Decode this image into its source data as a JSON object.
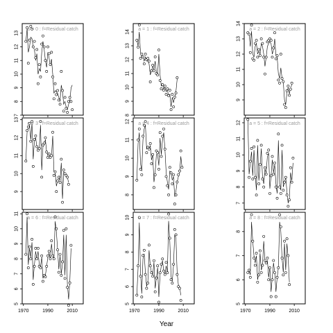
{
  "chart_data": {
    "type": "scatter",
    "xlabel": "Year",
    "x_ticks": [
      1970,
      1990,
      2010
    ],
    "years": [
      1972,
      1973,
      1974,
      1975,
      1976,
      1977,
      1978,
      1979,
      1980,
      1981,
      1982,
      1983,
      1984,
      1985,
      1986,
      1987,
      1988,
      1989,
      1990,
      1991,
      1992,
      1993,
      1994,
      1995,
      1996,
      1997,
      1998,
      1999,
      2000,
      2001,
      2002,
      2003,
      2004,
      2005,
      2006,
      2007,
      2008,
      2009,
      2010,
      2011,
      2012,
      2013,
      2014,
      2015,
      2016
    ],
    "panels": [
      {
        "title": "a = 0  :  f=Residual catch",
        "ylim": [
          7,
          13.7
        ],
        "yticks": [
          7,
          8,
          9,
          10,
          11,
          12,
          13
        ],
        "points": [
          12.4,
          13.4,
          10.8,
          12.5,
          13.5,
          13.3,
          12.0,
          12.4,
          11.2,
          11.8,
          9.3,
          10.7,
          9.8,
          12.2,
          12.8,
          12.0,
          11.0,
          10.2,
          12.0,
          11.5,
          10.7,
          11.6,
          9.8,
          8.2,
          9.3,
          8.5,
          8.8,
          8.1,
          7.8,
          10.2,
          8.8,
          7.3,
          8.3,
          7.5,
          7.2,
          8.0,
          8.3,
          8.0,
          7.4
        ],
        "line": [
          12.4,
          13.3,
          11.6,
          12.0,
          12.7,
          12.6,
          12.0,
          11.8,
          11.0,
          11.5,
          10.0,
          10.4,
          10.2,
          11.6,
          12.4,
          11.8,
          11.0,
          10.5,
          11.6,
          11.2,
          10.6,
          11.1,
          10.0,
          8.6,
          8.8,
          8.7,
          8.6,
          8.3,
          8.0,
          9.2,
          8.7,
          7.8,
          8.0,
          7.6,
          7.4,
          7.8,
          8.0,
          9.0,
          9.2
        ]
      },
      {
        "title": "a = 1  :  f=Residual catch",
        "ylim": [
          8,
          14.6
        ],
        "yticks": [
          8,
          9,
          10,
          11,
          12,
          13,
          14
        ],
        "points": [
          13.4,
          12.9,
          14.5,
          12.1,
          12.4,
          12.2,
          11.7,
          12.4,
          12.0,
          12.1,
          11.9,
          10.4,
          11.2,
          11.6,
          11.2,
          12.2,
          11.0,
          10.9,
          12.7,
          10.5,
          9.9,
          10.2,
          9.8,
          10.1,
          9.5,
          9.9,
          9.4,
          9.8,
          8.4,
          9.5,
          8.6,
          9.3,
          9.6,
          10.7
        ],
        "line": [
          13.4,
          13.0,
          14.0,
          12.5,
          12.2,
          12.2,
          11.9,
          12.2,
          11.9,
          11.9,
          11.7,
          10.9,
          11.2,
          11.5,
          11.3,
          11.9,
          11.1,
          11.0,
          12.4,
          10.9,
          10.1,
          10.2,
          9.9,
          10.0,
          9.7,
          9.8,
          9.4,
          9.5,
          8.6,
          9.3,
          8.9,
          9.3,
          9.7,
          10.6
        ]
      },
      {
        "title": "a = 2  :  f=Residual catch",
        "ylim": [
          8,
          14
        ],
        "yticks": [
          9,
          10,
          11,
          12,
          13,
          14
        ],
        "points": [
          13.4,
          13.3,
          12.1,
          13.9,
          11.7,
          11.6,
          12.7,
          12.9,
          11.8,
          12.3,
          11.9,
          13.0,
          12.7,
          11.8,
          10.7,
          11.8,
          12.8,
          12.9,
          13.0,
          12.9,
          11.8,
          12.4,
          13.4,
          11.7,
          11.9,
          10.3,
          10.1,
          12.0,
          10.4,
          10.2,
          8.7,
          8.5,
          9.6,
          9.9,
          9.3,
          9.7,
          10.1
        ],
        "line": [
          13.4,
          13.3,
          12.5,
          13.5,
          12.0,
          11.8,
          12.5,
          12.7,
          12.0,
          12.2,
          12.0,
          12.7,
          12.5,
          12.0,
          11.2,
          11.8,
          12.5,
          12.7,
          12.8,
          12.7,
          12.0,
          12.3,
          13.0,
          11.9,
          11.8,
          10.7,
          10.4,
          11.1,
          10.4,
          10.2,
          9.0,
          8.7,
          9.5,
          9.8,
          9.4,
          9.8,
          10.0
        ]
      },
      {
        "title": "a = 3  :  f=Residual catch",
        "ylim": [
          8,
          13.1
        ],
        "yticks": [
          9,
          10,
          11,
          12,
          13
        ],
        "points": [
          10.7,
          12.4,
          12.6,
          12.8,
          11.8,
          12.9,
          10.4,
          11.9,
          12.1,
          11.5,
          11.3,
          11.4,
          12.9,
          9.8,
          11.6,
          11.7,
          12.0,
          11.2,
          10.9,
          11.1,
          10.9,
          11.0,
          12.3,
          9.9,
          10.1,
          9.0,
          9.6,
          9.8,
          9.5,
          10.8,
          8.4,
          10.2,
          10.0,
          9.9,
          9.8,
          9.4
        ],
        "line": [
          10.7,
          12.3,
          12.5,
          12.7,
          11.9,
          12.8,
          10.8,
          11.8,
          12.0,
          11.5,
          11.3,
          11.4,
          12.7,
          10.2,
          11.5,
          11.6,
          11.9,
          11.2,
          11.0,
          11.1,
          10.9,
          11.0,
          12.1,
          10.1,
          10.1,
          9.3,
          9.6,
          9.8,
          9.6,
          10.6,
          8.6,
          10.1,
          10.0,
          9.9,
          9.8,
          9.5
        ]
      },
      {
        "title": "a = 4  :  f=Residual catch",
        "ylim": [
          7.2,
          12.2
        ],
        "yticks": [
          8,
          9,
          10,
          11,
          12
        ],
        "points": [
          8.8,
          11.0,
          11.6,
          9.4,
          9.1,
          11.2,
          11.8,
          12.0,
          10.3,
          10.6,
          10.5,
          10.8,
          9.7,
          10.2,
          8.4,
          9.1,
          10.4,
          10.3,
          9.4,
          11.4,
          10.1,
          11.2,
          11.6,
          10.5,
          9.0,
          8.5,
          8.0,
          9.5,
          9.2,
          8.6,
          9.1,
          7.5,
          8.0,
          8.7,
          9.1,
          9.3,
          10.4,
          9.5
        ],
        "line": [
          8.8,
          10.8,
          11.4,
          9.7,
          9.3,
          11.0,
          11.6,
          11.8,
          10.5,
          10.6,
          10.5,
          10.7,
          9.9,
          10.2,
          8.7,
          9.2,
          10.2,
          10.2,
          9.6,
          11.1,
          10.2,
          11.0,
          11.4,
          10.5,
          9.2,
          8.7,
          8.3,
          9.3,
          9.2,
          8.8,
          9.0,
          7.9,
          8.2,
          8.7,
          9.0,
          9.2,
          10.1,
          9.5
        ]
      },
      {
        "title": "a = 5  :  f=Residual catch",
        "ylim": [
          6.6,
          12.3
        ],
        "yticks": [
          7,
          8,
          9,
          10,
          11,
          12
        ],
        "points": [
          12.2,
          8.6,
          9.6,
          10.4,
          8.5,
          10.5,
          8.6,
          7.5,
          10.9,
          8.2,
          9.4,
          10.6,
          8.5,
          8.0,
          9.2,
          8.8,
          10.1,
          10.3,
          7.6,
          8.7,
          9.9,
          8.8,
          9.5,
          8.0,
          7.3,
          11.3,
          8.0,
          7.6,
          10.6,
          7.8,
          8.3,
          8.6,
          7.5,
          6.8,
          7.2,
          9.2,
          8.3,
          9.8
        ],
        "line": [
          12.2,
          8.8,
          9.5,
          10.2,
          8.7,
          10.3,
          8.8,
          7.8,
          10.6,
          8.4,
          9.3,
          10.4,
          8.6,
          8.2,
          9.1,
          8.9,
          9.9,
          10.1,
          7.9,
          8.7,
          9.7,
          8.9,
          9.4,
          8.2,
          7.6,
          10.9,
          8.2,
          7.8,
          10.3,
          8.0,
          8.3,
          8.6,
          7.7,
          7.0,
          7.3,
          8.9,
          8.4,
          9.5
        ]
      },
      {
        "title": "a = 6  :  f=Residual catch",
        "ylim": [
          5,
          11.1
        ],
        "yticks": [
          5,
          6,
          7,
          8,
          9,
          10,
          11
        ],
        "points": [
          8.3,
          11.0,
          7.4,
          8.8,
          8.0,
          9.3,
          6.3,
          7.5,
          8.7,
          8.0,
          8.7,
          7.5,
          7.4,
          8.2,
          6.5,
          6.9,
          6.8,
          7.5,
          8.2,
          8.5,
          8.0,
          9.2,
          8.2,
          8.0,
          10.8,
          10.0,
          8.6,
          7.1,
          8.3,
          6.9,
          7.8,
          9.9,
          6.7,
          10.0,
          6.1,
          4.9,
          6.4,
          8.9
        ],
        "line": [
          8.3,
          10.8,
          7.6,
          8.7,
          8.1,
          9.1,
          6.6,
          7.6,
          8.5,
          8.0,
          8.5,
          7.6,
          7.5,
          8.1,
          6.7,
          6.9,
          6.9,
          7.5,
          8.1,
          8.4,
          8.0,
          9.0,
          8.2,
          8.0,
          10.5,
          9.8,
          8.6,
          7.3,
          8.2,
          7.0,
          7.7,
          9.6,
          6.9,
          9.6,
          6.3,
          5.3,
          6.5,
          8.7
        ]
      },
      {
        "title": "a = 7  :  f=Residual catch",
        "ylim": [
          5,
          10.3
        ],
        "yticks": [
          5,
          6,
          7,
          8,
          9,
          10
        ],
        "points": [
          5.5,
          7.2,
          10.0,
          6.6,
          5.4,
          7.8,
          8.1,
          6.7,
          5.9,
          6.2,
          8.4,
          7.2,
          6.8,
          6.6,
          7.5,
          5.7,
          6.5,
          7.2,
          5.1,
          6.8,
          7.3,
          7.6,
          6.9,
          6.7,
          7.4,
          6.8,
          10.2,
          8.8,
          6.4,
          6.2,
          7.3,
          9.3,
          9.0,
          6.7,
          6.0,
          5.9,
          5.2
        ],
        "line": [
          5.5,
          7.1,
          9.7,
          6.8,
          5.6,
          7.6,
          7.9,
          6.8,
          6.0,
          6.3,
          8.1,
          7.2,
          6.8,
          6.7,
          7.4,
          5.9,
          6.5,
          7.1,
          5.4,
          6.7,
          7.2,
          7.5,
          6.9,
          6.7,
          7.2,
          6.8,
          9.8,
          8.6,
          6.6,
          6.3,
          7.2,
          9.0,
          8.8,
          6.8,
          6.1,
          6.0,
          5.5
        ]
      },
      {
        "title": "a = 8  :  f=Residual catch",
        "ylim": [
          5,
          8.8
        ],
        "yticks": [
          5,
          6,
          7,
          8
        ],
        "points": [
          6.3,
          6.4,
          6.1,
          8.7,
          7.6,
          6.9,
          6.6,
          7.1,
          5.9,
          6.2,
          7.2,
          6.3,
          6.6,
          7.8,
          6.8,
          6.7,
          6.9,
          6.0,
          6.5,
          5.3,
          6.0,
          6.8,
          6.3,
          5.3,
          6.1,
          6.5,
          8.7,
          8.2,
          6.9,
          6.2,
          7.6,
          6.3,
          7.7,
          7.0,
          5.8
        ],
        "line": [
          6.3,
          6.4,
          6.2,
          8.4,
          7.6,
          7.0,
          6.7,
          7.0,
          6.0,
          6.3,
          7.1,
          6.4,
          6.6,
          7.6,
          6.8,
          6.7,
          6.8,
          6.1,
          6.5,
          5.5,
          6.1,
          6.7,
          6.3,
          5.5,
          6.1,
          6.5,
          8.4,
          8.0,
          6.9,
          6.3,
          7.5,
          6.4,
          7.5,
          6.9,
          5.9
        ]
      }
    ]
  }
}
